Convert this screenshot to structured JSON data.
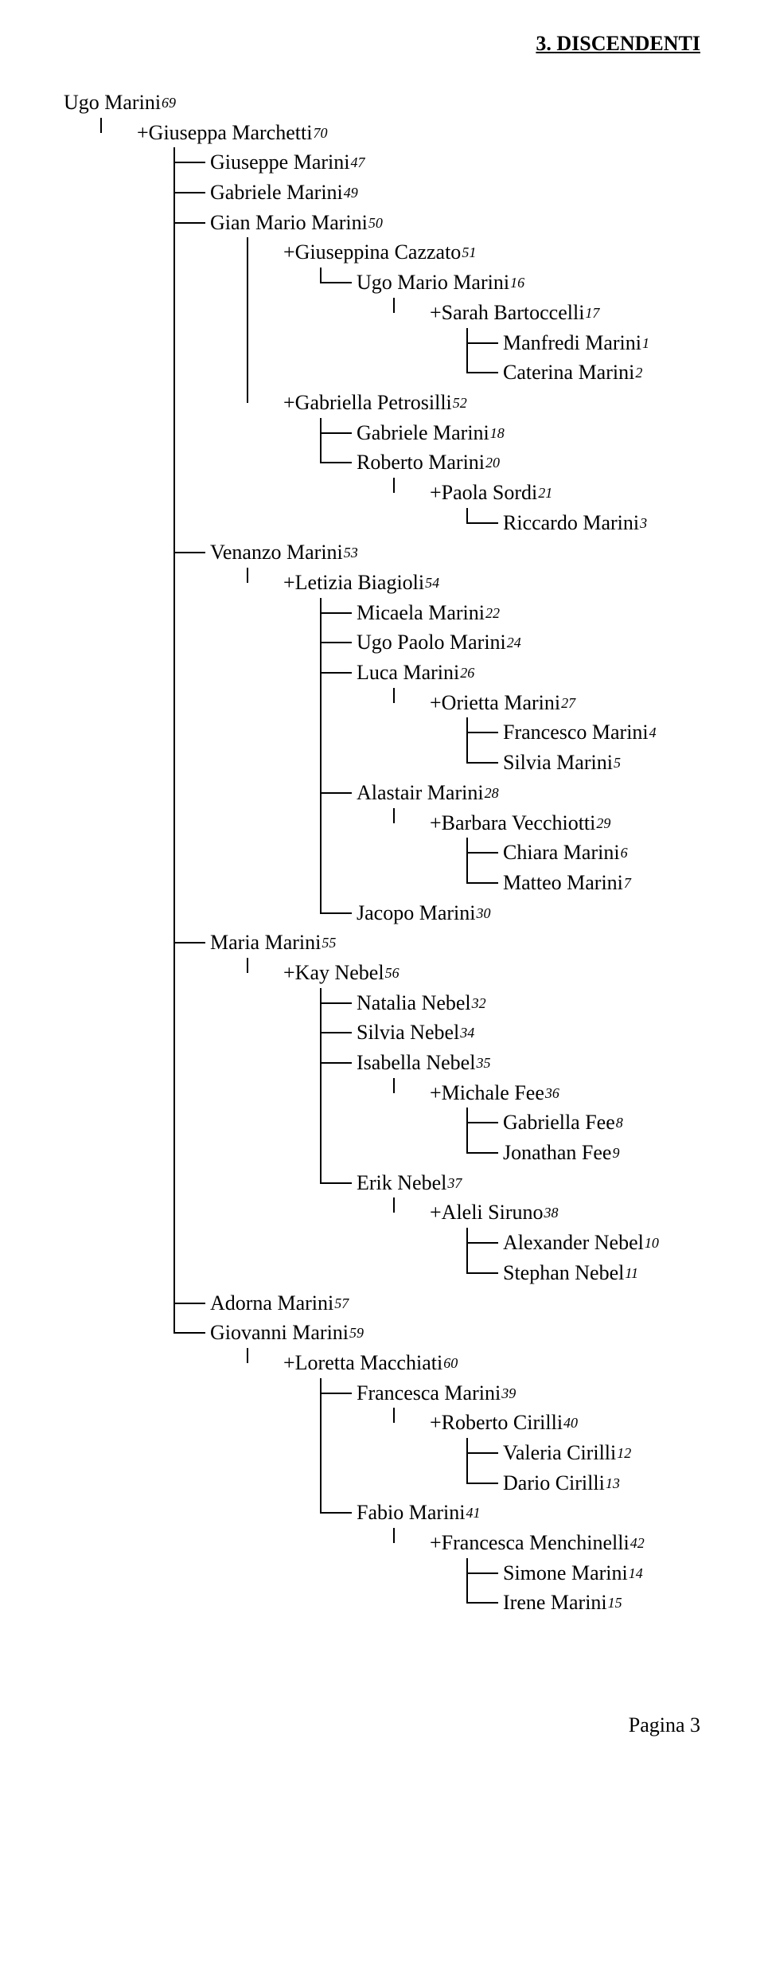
{
  "section_title": "3. DISCENDENTI",
  "footer": "Pagina 3",
  "line_color": "#000000",
  "background_color": "#ffffff",
  "font_family": "Times New Roman",
  "base_font_size_pt": 20,
  "ref_font_size_pt": 14,
  "tree": [
    {
      "label": "Ugo Marini",
      "ref": "69",
      "children": [
        {
          "label": "+Giuseppa Marchetti",
          "ref": "70",
          "spouse": true,
          "children": [
            {
              "label": "Giuseppe Marini",
              "ref": "47"
            },
            {
              "label": "Gabriele Marini",
              "ref": "49"
            },
            {
              "label": "Gian Mario Marini",
              "ref": "50",
              "children": [
                {
                  "label": "+Giuseppina Cazzato",
                  "ref": "51",
                  "spouse": true,
                  "children": [
                    {
                      "label": "Ugo Mario Marini",
                      "ref": "16",
                      "children": [
                        {
                          "label": "+Sarah Bartoccelli",
                          "ref": "17",
                          "spouse": true,
                          "children": [
                            {
                              "label": "Manfredi Marini",
                              "ref": "1"
                            },
                            {
                              "label": "Caterina Marini",
                              "ref": "2"
                            }
                          ]
                        }
                      ]
                    }
                  ]
                },
                {
                  "label": "+Gabriella Petrosilli",
                  "ref": "52",
                  "spouse": true,
                  "children": [
                    {
                      "label": "Gabriele Marini",
                      "ref": "18"
                    },
                    {
                      "label": "Roberto Marini",
                      "ref": "20",
                      "children": [
                        {
                          "label": "+Paola Sordi",
                          "ref": "21",
                          "spouse": true,
                          "children": [
                            {
                              "label": "Riccardo Marini",
                              "ref": "3"
                            }
                          ]
                        }
                      ]
                    }
                  ]
                }
              ]
            },
            {
              "label": "Venanzo Marini",
              "ref": "53",
              "children": [
                {
                  "label": "+Letizia Biagioli",
                  "ref": "54",
                  "spouse": true,
                  "children": [
                    {
                      "label": "Micaela Marini",
                      "ref": "22"
                    },
                    {
                      "label": "Ugo Paolo Marini",
                      "ref": "24"
                    },
                    {
                      "label": "Luca Marini",
                      "ref": "26",
                      "children": [
                        {
                          "label": "+Orietta Marini",
                          "ref": "27",
                          "spouse": true,
                          "children": [
                            {
                              "label": "Francesco Marini",
                              "ref": "4"
                            },
                            {
                              "label": "Silvia Marini",
                              "ref": "5"
                            }
                          ]
                        }
                      ]
                    },
                    {
                      "label": "Alastair Marini",
                      "ref": "28",
                      "children": [
                        {
                          "label": "+Barbara Vecchiotti",
                          "ref": "29",
                          "spouse": true,
                          "children": [
                            {
                              "label": "Chiara Marini",
                              "ref": "6"
                            },
                            {
                              "label": "Matteo Marini",
                              "ref": "7"
                            }
                          ]
                        }
                      ]
                    },
                    {
                      "label": "Jacopo Marini",
                      "ref": "30"
                    }
                  ]
                }
              ]
            },
            {
              "label": "Maria Marini",
              "ref": "55",
              "children": [
                {
                  "label": "+Kay Nebel",
                  "ref": "56",
                  "spouse": true,
                  "children": [
                    {
                      "label": "Natalia Nebel",
                      "ref": "32"
                    },
                    {
                      "label": "Silvia Nebel",
                      "ref": "34"
                    },
                    {
                      "label": "Isabella Nebel",
                      "ref": "35",
                      "children": [
                        {
                          "label": "+Michale Fee",
                          "ref": "36",
                          "spouse": true,
                          "children": [
                            {
                              "label": "Gabriella Fee",
                              "ref": "8"
                            },
                            {
                              "label": "Jonathan Fee",
                              "ref": "9"
                            }
                          ]
                        }
                      ]
                    },
                    {
                      "label": "Erik Nebel",
                      "ref": "37",
                      "children": [
                        {
                          "label": "+Aleli Siruno",
                          "ref": "38",
                          "spouse": true,
                          "children": [
                            {
                              "label": "Alexander Nebel",
                              "ref": "10"
                            },
                            {
                              "label": "Stephan Nebel",
                              "ref": "11"
                            }
                          ]
                        }
                      ]
                    }
                  ]
                }
              ]
            },
            {
              "label": "Adorna Marini",
              "ref": "57"
            },
            {
              "label": "Giovanni Marini",
              "ref": "59",
              "children": [
                {
                  "label": "+Loretta Macchiati",
                  "ref": "60",
                  "spouse": true,
                  "children": [
                    {
                      "label": "Francesca Marini",
                      "ref": "39",
                      "children": [
                        {
                          "label": "+Roberto Cirilli",
                          "ref": "40",
                          "spouse": true,
                          "children": [
                            {
                              "label": "Valeria Cirilli",
                              "ref": "12"
                            },
                            {
                              "label": "Dario Cirilli",
                              "ref": "13"
                            }
                          ]
                        }
                      ]
                    },
                    {
                      "label": "Fabio Marini",
                      "ref": "41",
                      "children": [
                        {
                          "label": "+Francesca Menchinelli",
                          "ref": "42",
                          "spouse": true,
                          "children": [
                            {
                              "label": "Simone Marini",
                              "ref": "14"
                            },
                            {
                              "label": "Irene Marini",
                              "ref": "15"
                            }
                          ]
                        }
                      ]
                    }
                  ]
                }
              ]
            }
          ]
        }
      ]
    }
  ]
}
